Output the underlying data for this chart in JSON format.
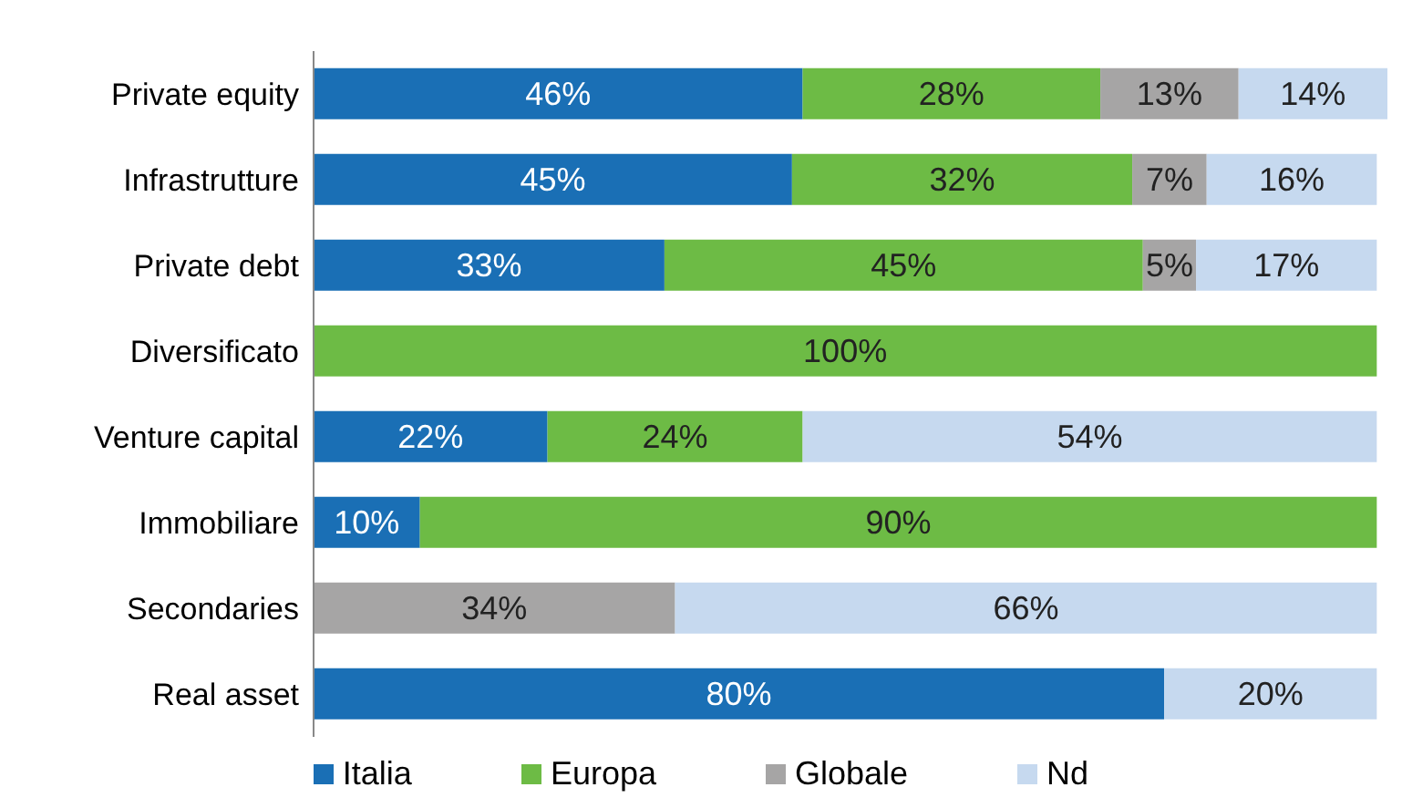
{
  "chart_data": {
    "type": "bar",
    "orientation": "horizontal",
    "stacked": true,
    "categories": [
      "Private equity",
      "Infrastrutture",
      "Private debt",
      "Diversificato",
      "Venture capital",
      "Immobiliare",
      "Secondaries",
      "Real asset"
    ],
    "series": [
      {
        "name": "Italia",
        "color": "#1a6fb5",
        "values": [
          46,
          45,
          33,
          null,
          22,
          10,
          null,
          80
        ],
        "value_labels": [
          "46%",
          "45%",
          "33%",
          null,
          "22%",
          "10%",
          null,
          "80%"
        ]
      },
      {
        "name": "Europa",
        "color": "#6dbb45",
        "values": [
          28,
          32,
          45,
          100,
          24,
          90,
          null,
          null
        ],
        "value_labels": [
          "28%",
          "32%",
          "45%",
          "100%",
          "24%",
          "90%",
          null,
          null
        ]
      },
      {
        "name": "Globale",
        "color": "#a6a5a5",
        "values": [
          13,
          7,
          5,
          null,
          null,
          null,
          34,
          null
        ],
        "value_labels": [
          "13%",
          "7%",
          "5%",
          null,
          null,
          null,
          "34%",
          null
        ]
      },
      {
        "name": "Nd",
        "color": "#c6d9ef",
        "values": [
          14,
          16,
          17,
          null,
          54,
          null,
          66,
          20
        ],
        "value_labels": [
          "14%",
          "16%",
          "17%",
          null,
          "54%",
          null,
          "66%",
          "20%"
        ]
      }
    ],
    "xlim": [
      0,
      101
    ],
    "tick_labels": "y",
    "legend": "bottom"
  }
}
